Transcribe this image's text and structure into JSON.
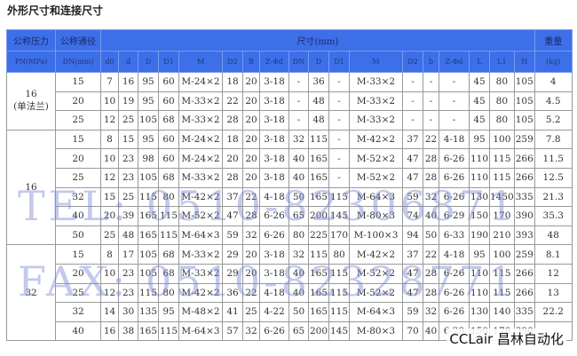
{
  "title": "外形尺寸和连接尺寸",
  "header": {
    "pn_label": "公称压力",
    "pn_unit": "PN(MPa)",
    "dn_label": "公称通径",
    "dn_unit": "DN(mm)",
    "size_label": "尺寸(mm)",
    "weight_label": "重量",
    "weight_unit": "(kg)",
    "columns": [
      "d0",
      "d",
      "D",
      "D1",
      "M",
      "D2",
      "B",
      "Z-Φd",
      "DN",
      "D",
      "D1",
      "M",
      "D2",
      "b",
      "Z-Φd",
      "L",
      "L1",
      "H"
    ]
  },
  "groups": [
    {
      "pn": "16",
      "note": "(单法兰)",
      "rows": [
        [
          "15",
          "7",
          "16",
          "95",
          "60",
          "M-24×2",
          "18",
          "20",
          "3-18",
          "-",
          "36",
          "-",
          "M-33×2",
          "-",
          "-",
          "-",
          "45",
          "80",
          "105",
          "4"
        ],
        [
          "20",
          "10",
          "19",
          "95",
          "60",
          "M-33×2",
          "22",
          "20",
          "3-18",
          "-",
          "48",
          "-",
          "M-33×2",
          "-",
          "-",
          "-",
          "45",
          "80",
          "105",
          "4.5"
        ],
        [
          "25",
          "12",
          "25",
          "105",
          "68",
          "M-33×2",
          "28",
          "20",
          "3-18",
          "-",
          "48",
          "-",
          "M-33×2",
          "-",
          "-",
          "-",
          "45",
          "80",
          "105",
          "5.2"
        ]
      ]
    },
    {
      "pn": "16",
      "note": "",
      "rows": [
        [
          "15",
          "8",
          "15",
          "95",
          "60",
          "M-24×2",
          "18",
          "20",
          "3-18",
          "32",
          "115",
          "-",
          "M-42×2",
          "37",
          "22",
          "4-18",
          "95",
          "100",
          "259",
          "7.8"
        ],
        [
          "20",
          "10",
          "23",
          "98",
          "60",
          "M-24×2",
          "20",
          "20",
          "3-18",
          "40",
          "165",
          "-",
          "M-52×2",
          "47",
          "28",
          "6-26",
          "110",
          "115",
          "266",
          "11.5"
        ],
        [
          "25",
          "12",
          "23",
          "105",
          "68",
          "M-33×2",
          "28",
          "20",
          "3-18",
          "40",
          "165",
          "-",
          "M-52×2",
          "47",
          "28",
          "6-26",
          "110",
          "115",
          "266",
          "12.5"
        ],
        [
          "32",
          "15",
          "25",
          "115",
          "80",
          "M-42×2",
          "37",
          "22",
          "4-18",
          "50",
          "165",
          "115",
          "M-64×3",
          "59",
          "32",
          "6-26",
          "130",
          "1450",
          "335",
          "21.3"
        ],
        [
          "40",
          "20",
          "39",
          "165",
          "115",
          "M-52×2",
          "47",
          "28",
          "6-26",
          "65",
          "200",
          "145",
          "M-80×3",
          "74",
          "40",
          "6-29",
          "150",
          "170",
          "390",
          "35.3"
        ],
        [
          "50",
          "25",
          "48",
          "165",
          "115",
          "M-64×3",
          "59",
          "32",
          "6-26",
          "80",
          "225",
          "170",
          "M-100×3",
          "94",
          "50",
          "6-33",
          "190",
          "210",
          "393",
          "48"
        ]
      ]
    },
    {
      "pn": "32",
      "note": "",
      "rows": [
        [
          "15",
          "8",
          "17",
          "105",
          "68",
          "M-33×2",
          "29",
          "20",
          "3-18",
          "32",
          "115",
          "80",
          "M-42×2",
          "37",
          "22",
          "4-18",
          "95",
          "100",
          "259",
          "8.1"
        ],
        [
          "20",
          "10",
          "23",
          "105",
          "68",
          "M-33×2",
          "29",
          "20",
          "3-18",
          "40",
          "165",
          "115",
          "M-52×2",
          "47",
          "28",
          "6-26",
          "110",
          "115",
          "266",
          "12"
        ],
        [
          "25",
          "12",
          "23",
          "115",
          "80",
          "M-42×2",
          "36",
          "22",
          "4-18",
          "40",
          "165",
          "115",
          "M-52×2",
          "47",
          "28",
          "6-26",
          "110",
          "115",
          "266",
          "13"
        ],
        [
          "32",
          "14",
          "30",
          "135",
          "95",
          "M-48×2",
          "41",
          "25",
          "4-22",
          "50",
          "165",
          "115",
          "M-64×3",
          "59",
          "32",
          "6-26",
          "130",
          "140",
          "335",
          "22.2"
        ],
        [
          "40",
          "16",
          "38",
          "165",
          "115",
          "M-64×3",
          "57",
          "32",
          "6-26",
          "65",
          "200",
          "145",
          "M-80×3",
          "70",
          "40",
          "6-29",
          "150",
          "170",
          "390",
          ""
        ]
      ]
    }
  ],
  "watermark": {
    "tel": "TEL: 0510-82306871",
    "fax": "FAX: 0510-82328771"
  },
  "logo": "CCLair 昌林自动化"
}
